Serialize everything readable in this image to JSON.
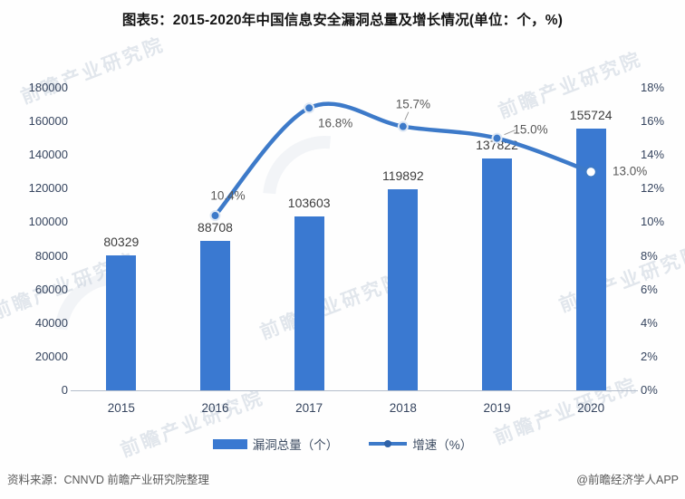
{
  "title": "图表5：2015-2020年中国信息安全漏洞总量及增长情况(单位：个，%)",
  "watermark_text": "前瞻产业研究院",
  "chart_data": {
    "type": "bar+line",
    "title": "图表5：2015-2020年中国信息安全漏洞总量及增长情况(单位：个，%)",
    "categories": [
      "2015",
      "2016",
      "2017",
      "2018",
      "2019",
      "2020"
    ],
    "series": [
      {
        "name": "漏洞总量（个）",
        "type": "bar",
        "axis": "left",
        "values": [
          80329,
          88708,
          103603,
          119892,
          137822,
          155724
        ],
        "labels": [
          "80329",
          "88708",
          "103603",
          "119892",
          "137822",
          "155724"
        ]
      },
      {
        "name": "增速（%）",
        "type": "line",
        "axis": "right",
        "values": [
          null,
          10.4,
          16.8,
          15.7,
          15.0,
          13.0
        ],
        "labels": [
          "",
          "10.4%",
          "16.8%",
          "15.7%",
          "15.0%",
          "13.0%"
        ]
      }
    ],
    "left_axis": {
      "min": 0,
      "max": 180000,
      "step": 20000,
      "tick_labels_top_down": [
        "180000",
        "160000",
        "140000",
        "120000",
        "100000",
        "80000",
        "60000",
        "40000",
        "20000",
        "0"
      ]
    },
    "right_axis": {
      "min": 0,
      "max": 18,
      "step": 2,
      "tick_labels_top_down": [
        "18%",
        "16%",
        "14%",
        "12%",
        "10%",
        "8%",
        "6%",
        "4%",
        "2%",
        "0%"
      ]
    },
    "legend": [
      {
        "label": "漏洞总量（个）",
        "marker": "bar-swatch"
      },
      {
        "label": "增速（%）",
        "marker": "line-dot"
      }
    ],
    "legend_position": "bottom",
    "grid": "off",
    "colors": {
      "bar": "#3a79d1",
      "line": "#3d7ac9",
      "marker_ring": "#dfe8f4",
      "open_marker_fill": "#ffffff"
    }
  },
  "footer": {
    "source": "资料来源：CNNVD 前瞻产业研究院整理",
    "credit": "@前瞻经济学人APP"
  }
}
